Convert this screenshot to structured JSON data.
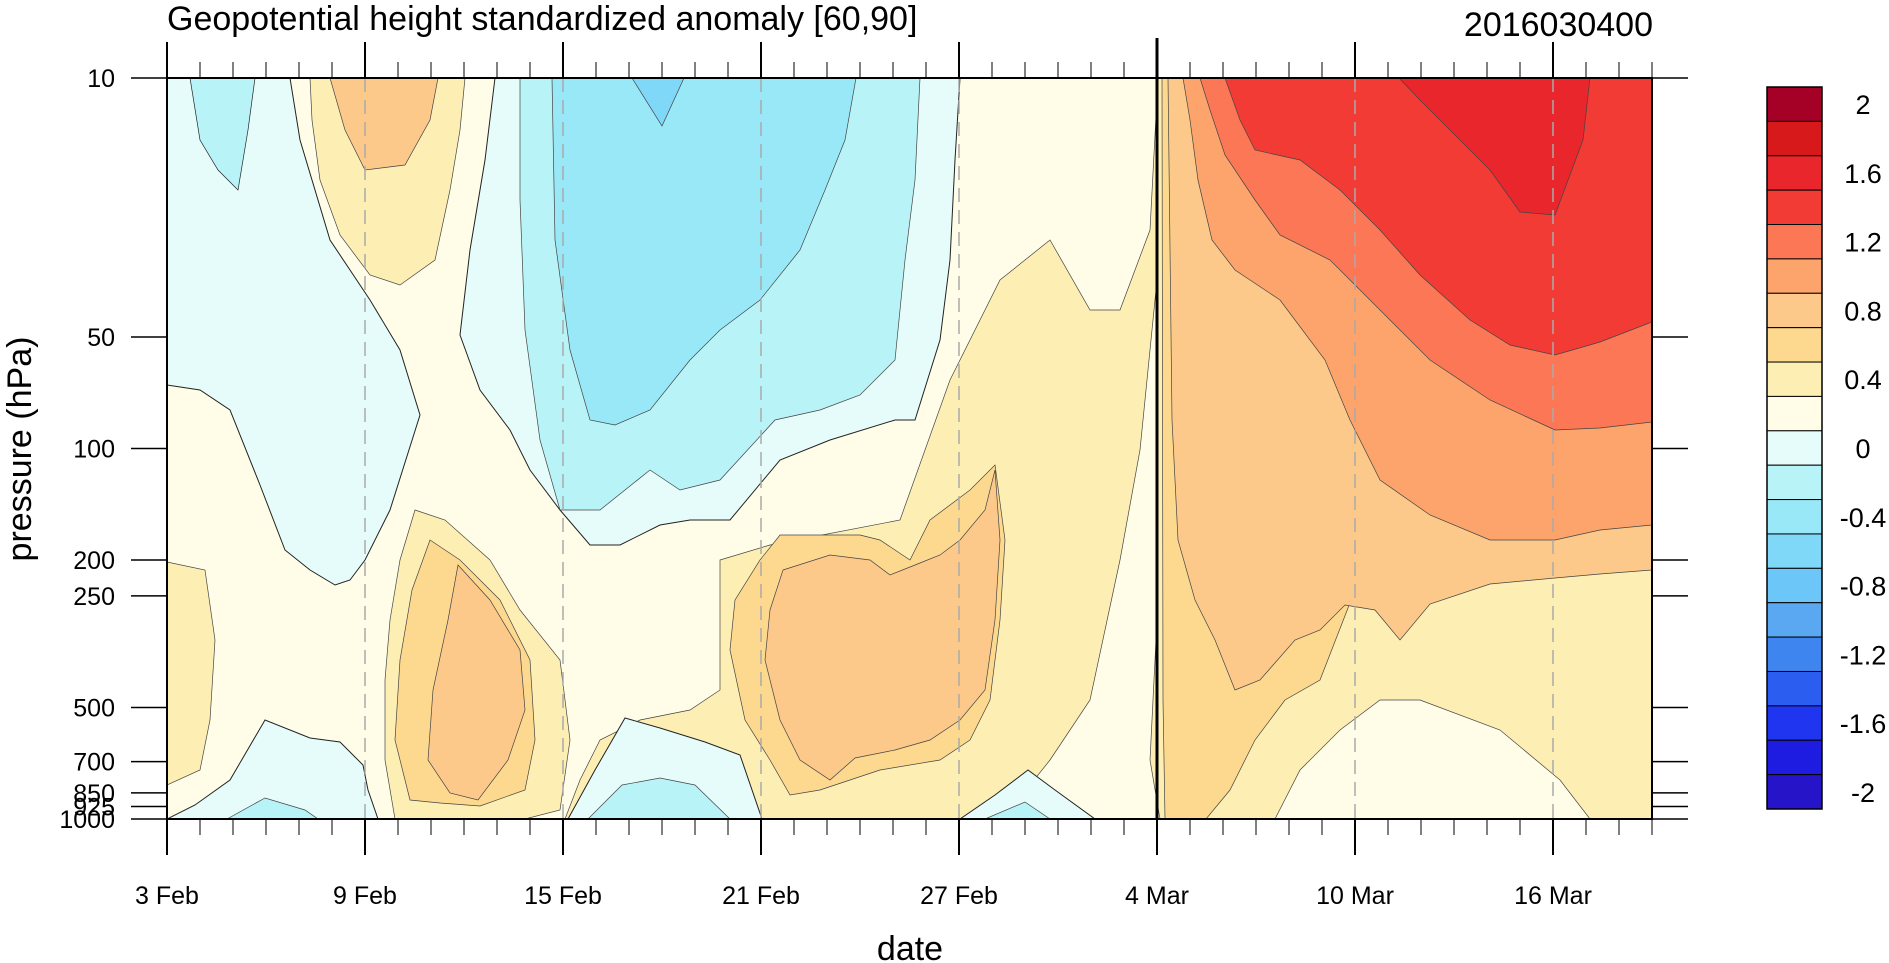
{
  "chart_data": {
    "type": "contour",
    "title": "Geopotential height standardized anomaly [60,90]",
    "right_title": "2016030400",
    "xlabel": "date",
    "ylabel": "pressure (hPa)",
    "x_tick_labels": [
      "3 Feb",
      "9 Feb",
      "15 Feb",
      "21 Feb",
      "27 Feb",
      "4 Mar",
      "10 Mar",
      "16 Mar"
    ],
    "x_tick_days": [
      0,
      6,
      12,
      18,
      24,
      30,
      36,
      42
    ],
    "x_range_days": [
      0,
      45
    ],
    "x_minor_tick_step_days": 1,
    "vertical_marker_label": "4 Mar",
    "vertical_marker_day": 30,
    "y_scale": "log",
    "y_range": [
      1000,
      10
    ],
    "y_tick_labels": [
      "10",
      "50",
      "100",
      "200",
      "250",
      "500",
      "700",
      "850",
      "925",
      "1000"
    ],
    "y_tick_values": [
      10,
      50,
      100,
      200,
      250,
      500,
      700,
      850,
      925,
      1000
    ],
    "colorbar": {
      "labels": [
        "2",
        "1.6",
        "1.2",
        "0.8",
        "0.4",
        "0",
        "-0.4",
        "-0.8",
        "-1.2",
        "-1.6",
        "-2"
      ],
      "label_values": [
        2,
        1.6,
        1.2,
        0.8,
        0.4,
        0,
        -0.4,
        -0.8,
        -1.2,
        -1.6,
        -2
      ],
      "colors_top_to_bottom": [
        "#a50026",
        "#d7191c",
        "#e8262c",
        "#f23b35",
        "#fb7755",
        "#fca46c",
        "#fcc98a",
        "#fdd98f",
        "#fdeeb3",
        "#fffde7",
        "#e6fcfb",
        "#b8f3f7",
        "#99e8f8",
        "#7fd8f8",
        "#6cc6f7",
        "#5aa8f2",
        "#3f85f0",
        "#2b5ef0",
        "#1f35ef",
        "#1d1ce0",
        "#2514c8"
      ]
    },
    "colors": {
      "neg_weak": "#e6fcfb",
      "neg_light": "#b8f3f7",
      "neg_mid": "#99e8f8",
      "neg_strong": "#7fd8f8",
      "zero": "#fffde7",
      "pos_weak": "#fdeeb3",
      "pos_light": "#fdd98f",
      "pos_mid": "#fcc98a",
      "pos_strong": "#fca46c",
      "pos_orange": "#fb7755",
      "pos_red": "#f23b35",
      "pos_deep": "#e8262c"
    }
  }
}
